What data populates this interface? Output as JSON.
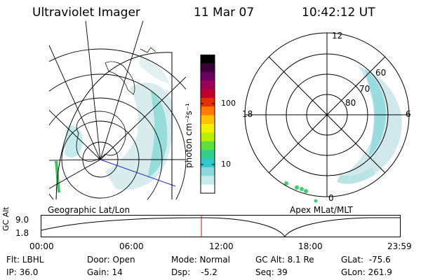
{
  "header": {
    "instrument": "Ultraviolet Imager",
    "date": "11 Mar 07",
    "time": "10:42:12 UT"
  },
  "panels": {
    "left_label": "Geographic Lat/Lon",
    "right_label": "Apex  MLat/MLT"
  },
  "colorbar": {
    "label": "photon cm⁻²s⁻¹",
    "ticks": [
      "100",
      "10"
    ],
    "colors": [
      "#000000",
      "#3a0038",
      "#6b0060",
      "#9a005a",
      "#c0002a",
      "#e63000",
      "#ff7a00",
      "#ffc000",
      "#f4f000",
      "#b8f000",
      "#60e040",
      "#30d090",
      "#30c8c8",
      "#8ad8dc",
      "#c8ecee",
      "#ffffff"
    ]
  },
  "polar": {
    "mlt_labels": [
      "12",
      "18",
      "6",
      "0"
    ],
    "lat_labels": [
      "60",
      "70",
      "80"
    ]
  },
  "timeline": {
    "axis_title": "GC Alt",
    "y_ticks": [
      "9.0",
      "1.8"
    ],
    "x_ticks": [
      "00:00",
      "06:00",
      "12:00",
      "18:00",
      "23:59"
    ],
    "current_time_fraction": 0.4463,
    "marker_color": "#ff0000"
  },
  "info": {
    "flt": "Flt: LBHL",
    "ip": "IP: 36.0",
    "door": "Door: Open",
    "gain": "Gain: 14",
    "mode": "Mode: Normal",
    "dsp": "Dsp:    -5.2",
    "gcalt": "GC Alt: 8.1 Re",
    "seq": "Seq: 39",
    "glat": "GLat:  -75.6",
    "glon": "GLon: 261.9"
  }
}
